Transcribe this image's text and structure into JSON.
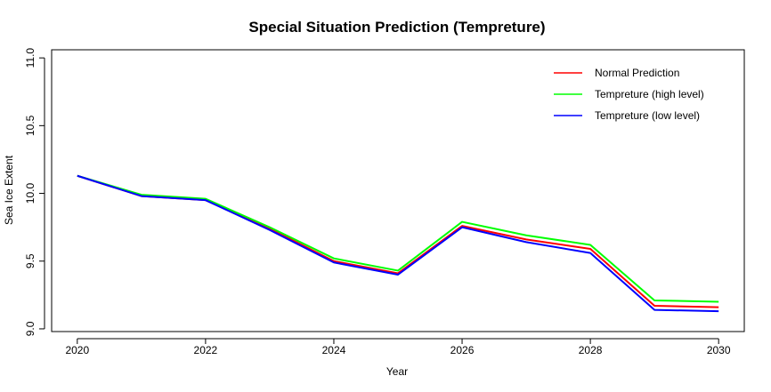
{
  "chart_data": {
    "type": "line",
    "title": "Special Situation Prediction (Tempreture)",
    "xlabel": "Year",
    "ylabel": "Sea Ice Extent",
    "xlim": [
      2019.6,
      2030.4
    ],
    "ylim": [
      8.98,
      11.06
    ],
    "x": [
      2020,
      2021,
      2022,
      2023,
      2024,
      2025,
      2026,
      2027,
      2028,
      2029,
      2030
    ],
    "x_ticks": [
      2020,
      2022,
      2024,
      2026,
      2028,
      2030
    ],
    "y_ticks": [
      9.0,
      9.5,
      10.0,
      10.5,
      11.0
    ],
    "y_tick_labels": [
      "9.0",
      "9.5",
      "10.0",
      "10.5",
      "11.0"
    ],
    "legend_position": "top-right",
    "grid": false,
    "series": [
      {
        "name": "Normal Prediction",
        "color": "#ff0000",
        "values": [
          10.13,
          9.98,
          9.95,
          9.74,
          9.5,
          9.41,
          9.76,
          9.66,
          9.59,
          9.17,
          9.16
        ]
      },
      {
        "name": "Tempreture (high level)",
        "color": "#00ff00",
        "values": [
          10.13,
          9.99,
          9.96,
          9.75,
          9.52,
          9.43,
          9.79,
          9.69,
          9.62,
          9.21,
          9.2
        ]
      },
      {
        "name": "Tempreture (low level)",
        "color": "#0000ff",
        "values": [
          10.13,
          9.98,
          9.95,
          9.73,
          9.49,
          9.4,
          9.75,
          9.64,
          9.56,
          9.14,
          9.13
        ]
      }
    ]
  }
}
